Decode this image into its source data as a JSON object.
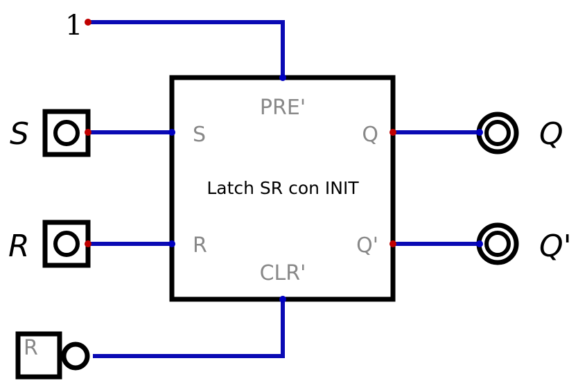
{
  "constant_label": "1",
  "component": {
    "title": "Latch SR con INIT",
    "pins": {
      "pre": "PRE'",
      "clr": "CLR'",
      "s": "S",
      "r": "R",
      "q": "Q",
      "qn": "Q'"
    }
  },
  "inputs": {
    "s_label": "S",
    "r_label": "R"
  },
  "outputs": {
    "q_label": "Q",
    "qn_label": "Q'"
  },
  "reset_button_label": "R",
  "colors": {
    "wire": "#0a0ab4",
    "pin_out": "#c00000",
    "pin_in": "#0000c0",
    "stroke": "#000000",
    "pin_text": "#888888"
  }
}
